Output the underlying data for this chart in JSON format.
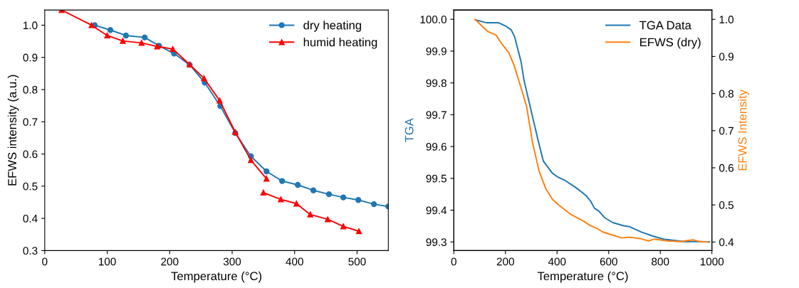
{
  "chart_data": [
    {
      "type": "line",
      "xlabel": "Temperature (°C)",
      "ylabel": "EFWS intensity (a.u.)",
      "xlim": [
        0,
        550
      ],
      "ylim": [
        0.3,
        1.047
      ],
      "xticks": [
        0,
        100,
        200,
        300,
        400,
        500
      ],
      "yticks": [
        0.3,
        0.4,
        0.5,
        0.6,
        0.7,
        0.8,
        0.9,
        {
          "value": 1,
          "label": "1.0"
        }
      ],
      "grid": false,
      "legend": "top right",
      "series": [
        {
          "name": "dry heating",
          "color": "#1f77b4",
          "marker": "circle",
          "x": [
            80,
            105,
            130,
            160,
            183,
            207,
            232,
            256,
            281,
            305,
            330,
            355,
            380,
            405,
            430,
            455,
            478,
            502,
            527,
            550
          ],
          "values": [
            1.0,
            0.985,
            0.968,
            0.962,
            0.936,
            0.912,
            0.877,
            0.822,
            0.749,
            0.665,
            0.593,
            0.546,
            0.516,
            0.504,
            0.487,
            0.475,
            0.465,
            0.457,
            0.444,
            0.437
          ]
        },
        {
          "name": "humid heating",
          "color": "#ff0000",
          "marker": "triangle",
          "x": [
            27,
            75,
            100,
            125,
            155,
            180,
            205,
            232,
            255,
            280,
            305,
            330,
            355,
            352,
            350,
            378,
            403,
            425,
            453,
            478,
            503
          ],
          "values": [
            1.047,
            1.0,
            0.968,
            0.951,
            0.945,
            0.934,
            0.926,
            0.878,
            0.835,
            0.766,
            0.668,
            0.581,
            0.523,
            null,
            0.48,
            0.459,
            0.446,
            0.412,
            0.397,
            0.375,
            0.36
          ]
        }
      ]
    },
    {
      "type": "line",
      "xlabel": "Temperature (°C)",
      "ylabel": "TGA",
      "y2label": "EFWS Intensity",
      "xlim": [
        0,
        1000
      ],
      "ylim": [
        99.273,
        100.029
      ],
      "y2lim": [
        0.377,
        1.025
      ],
      "xticks": [
        0,
        200,
        400,
        600,
        800,
        1000
      ],
      "yticks": [
        {
          "value": 99.3,
          "label": "99.3"
        },
        {
          "value": 99.4,
          "label": "99.4"
        },
        {
          "value": 99.5,
          "label": "99.5"
        },
        {
          "value": 99.6,
          "label": "99.6"
        },
        {
          "value": 99.7,
          "label": "99.7"
        },
        {
          "value": 99.8,
          "label": "99.8"
        },
        {
          "value": 99.9,
          "label": "99.9"
        },
        {
          "value": 100.0,
          "label": "100.0"
        }
      ],
      "y2ticks": [
        0.4,
        0.5,
        0.6,
        0.7,
        0.8,
        0.9,
        {
          "value": 1,
          "label": "1.0"
        }
      ],
      "grid": false,
      "legend": "top right",
      "series": [
        {
          "name": "TGA Data",
          "color": "#1f77b4",
          "axis": "y",
          "x": [
            84,
            128,
            174,
            205,
            223,
            236,
            261,
            272,
            324,
            347,
            382,
            405,
            432,
            478,
            512,
            531,
            545,
            562,
            585,
            616,
            658,
            681,
            727,
            769,
            812,
            892,
            954,
            990
          ],
          "values": [
            99.998,
            99.989,
            99.989,
            99.977,
            99.966,
            99.944,
            99.865,
            99.808,
            99.628,
            99.554,
            99.516,
            99.503,
            99.493,
            99.468,
            99.446,
            99.427,
            99.406,
            99.397,
            99.376,
            99.361,
            99.351,
            99.348,
            99.331,
            99.319,
            99.309,
            99.301,
            99.301,
            99.3
          ]
        },
        {
          "name": "EFWS (dry)",
          "color": "#ff7f0e",
          "axis": "y2",
          "x": [
            82,
            132,
            163,
            186,
            213,
            233,
            259,
            282,
            305,
            330,
            356,
            382,
            408,
            454,
            501,
            527,
            554,
            577,
            623,
            650,
            681,
            723,
            754,
            777,
            827,
            877,
            927,
            954,
            985
          ],
          "values": [
            1.0,
            0.967,
            0.958,
            0.934,
            0.91,
            0.877,
            0.819,
            0.765,
            0.668,
            0.592,
            0.544,
            0.515,
            0.499,
            0.474,
            0.457,
            0.445,
            0.437,
            0.427,
            0.417,
            0.411,
            0.413,
            0.409,
            0.403,
            0.408,
            0.403,
            0.401,
            0.406,
            0.401,
            0.4
          ]
        }
      ]
    }
  ]
}
